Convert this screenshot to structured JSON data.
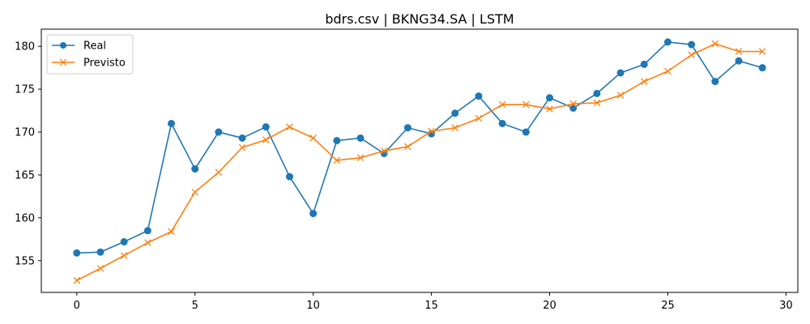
{
  "chart_data": {
    "type": "line",
    "title": "bdrs.csv | BKNG34.SA | LSTM",
    "xlabel": "",
    "ylabel": "",
    "xlim": [
      -1.5,
      30.5
    ],
    "ylim": [
      151.3,
      182.0
    ],
    "x_ticks": [
      0,
      5,
      10,
      15,
      20,
      25,
      30
    ],
    "y_ticks": [
      155,
      160,
      165,
      170,
      175,
      180
    ],
    "grid": false,
    "legend_position": "top-left",
    "x": [
      0,
      1,
      2,
      3,
      4,
      5,
      6,
      7,
      8,
      9,
      10,
      11,
      12,
      13,
      14,
      15,
      16,
      17,
      18,
      19,
      20,
      21,
      22,
      23,
      24,
      25,
      26,
      27,
      28,
      29
    ],
    "series": [
      {
        "name": "Real",
        "color": "#1f77b4",
        "marker": "circle",
        "values": [
          155.9,
          156.0,
          157.2,
          158.5,
          171.0,
          165.7,
          170.0,
          169.3,
          170.6,
          164.8,
          160.5,
          169.0,
          169.3,
          167.5,
          170.5,
          169.8,
          172.2,
          174.2,
          171.0,
          170.0,
          174.0,
          172.8,
          174.5,
          176.9,
          177.9,
          180.5,
          180.2,
          175.9,
          178.3,
          177.5
        ]
      },
      {
        "name": "Previsto",
        "color": "#ff7f0e",
        "marker": "x",
        "values": [
          152.7,
          154.1,
          155.6,
          157.1,
          158.4,
          163.0,
          165.3,
          168.2,
          169.1,
          170.6,
          169.3,
          166.7,
          167.0,
          167.8,
          168.3,
          170.1,
          170.5,
          171.6,
          173.2,
          173.2,
          172.7,
          173.3,
          173.4,
          174.3,
          175.9,
          177.1,
          179.0,
          180.3,
          179.4,
          179.4
        ]
      }
    ]
  }
}
